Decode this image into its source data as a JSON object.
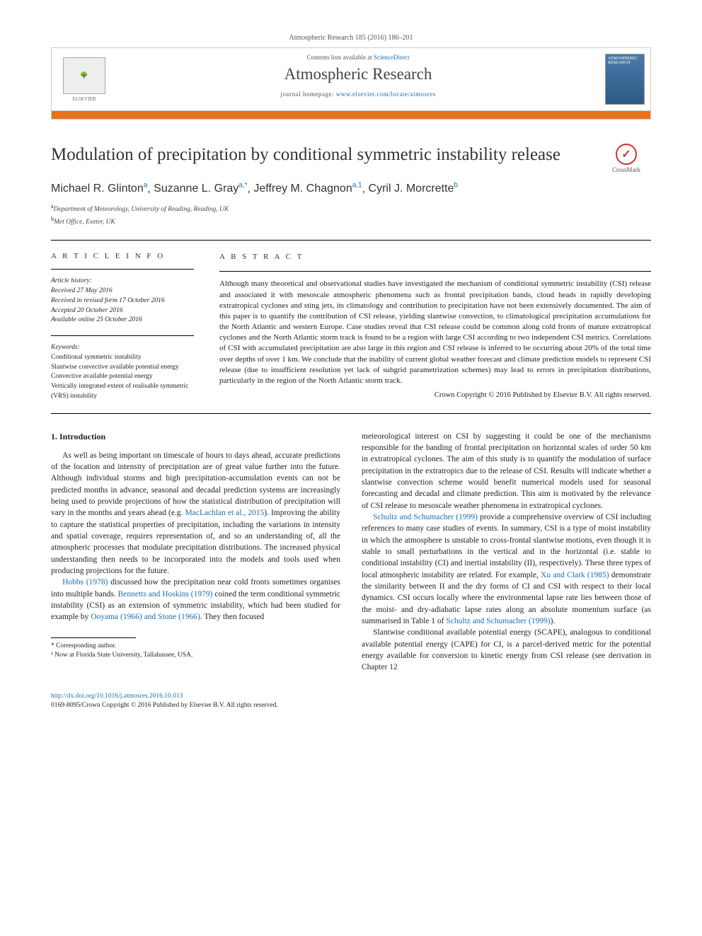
{
  "top_header": "Atmospheric Research 185 (2016) 186–201",
  "journal_box": {
    "contents_prefix": "Contents lists available at ",
    "contents_link": "ScienceDirect",
    "journal_name": "Atmospheric Research",
    "homepage_label": "journal homepage: ",
    "homepage_url": "www.elsevier.com/locate/atmosres",
    "publisher": "ELSEVIER",
    "cover_text": "ATMOSPHERIC RESEARCH"
  },
  "crossmark_label": "CrossMark",
  "title": "Modulation of precipitation by conditional symmetric instability release",
  "authors_html": "Michael R. Glinton",
  "authors": [
    {
      "name": "Michael R. Glinton",
      "sup": "a"
    },
    {
      "name": "Suzanne L. Gray",
      "sup": "a,*"
    },
    {
      "name": "Jeffrey M. Chagnon",
      "sup": "a,1"
    },
    {
      "name": "Cyril J. Morcrette",
      "sup": "b"
    }
  ],
  "affiliations": [
    {
      "sup": "a",
      "text": "Department of Meteorology, University of Reading, Reading, UK"
    },
    {
      "sup": "b",
      "text": "Met Office, Exeter, UK"
    }
  ],
  "article_info_label": "A R T I C L E   I N F O",
  "abstract_label": "A B S T R A C T",
  "history": {
    "heading": "Article history:",
    "lines": [
      "Received 27 May 2016",
      "Received in revised form 17 October 2016",
      "Accepted 20 October 2016",
      "Available online 25 October 2016"
    ]
  },
  "keywords": {
    "heading": "Keywords:",
    "items": [
      "Conditional symmetric instability",
      "Slantwise convective available potential energy",
      "Convective available potential energy",
      "Vertically integrated extent of realisable symmetric (VRS) instability"
    ]
  },
  "abstract_text": "Although many theoretical and observational studies have investigated the mechanism of conditional symmetric instability (CSI) release and associated it with mesoscale atmospheric phenomena such as frontal precipitation bands, cloud heads in rapidly developing extratropical cyclones and sting jets, its climatology and contribution to precipitation have not been extensively documented. The aim of this paper is to quantify the contribution of CSI release, yielding slantwise convection, to climatological precipitation accumulations for the North Atlantic and western Europe. Case studies reveal that CSI release could be common along cold fronts of mature extratropical cyclones and the North Atlantic storm track is found to be a region with large CSI according to two independent CSI metrics. Correlations of CSI with accumulated precipitation are also large in this region and CSI release is inferred to be occurring about 20% of the total time over depths of over 1 km. We conclude that the inability of current global weather forecast and climate prediction models to represent CSI release (due to insufficient resolution yet lack of subgrid parametrization schemes) may lead to errors in precipitation distributions, particularly in the region of the North Atlantic storm track.",
  "copyright_line": "Crown Copyright © 2016 Published by Elsevier B.V. All rights reserved.",
  "section1_heading": "1. Introduction",
  "body": {
    "p1": "As well as being important on timescale of hours to days ahead, accurate predictions of the location and intensity of precipitation are of great value further into the future. Although individual storms and high precipitation-accumulation events can not be predicted months in advance, seasonal and decadal prediction systems are increasingly being used to provide projections of how the statistical distribution of precipitation will vary in the months and years ahead (e.g. ",
    "p1_ref": "MacLachlan et al., 2015",
    "p1_b": "). Improving the ability to capture the statistical properties of precipitation, including the variations in intensity and spatial coverage, requires representation of, and so an understanding of, all the atmospheric processes that modulate precipitation distributions. The increased physical understanding then needs to be incorporated into the models and tools used when producing projections for the future.",
    "p2_a": "",
    "p2_ref1": "Hobbs (1978)",
    "p2_b": " discussed how the precipitation near cold fronts sometimes organises into multiple bands. ",
    "p2_ref2": "Bennetts and Hoskins (1979)",
    "p2_c": " coined the term conditional symmetric instability (CSI) as an extension of symmetric instability, which had been studied for example by ",
    "p2_ref3": "Ooyama (1966) and Stone (1966)",
    "p2_d": ". They then focused ",
    "p2_e": "meteorological interest on CSI by suggesting it could be one of the mechanisms responsible for the banding of frontal precipitation on horizontal scales of order 50 km in extratropical cyclones. The aim of this study is to quantify the modulation of surface precipitation in the extratropics due to the release of CSI. Results will indicate whether a slantwise convection scheme would benefit numerical models used for seasonal forecasting and decadal and climate prediction. This aim is motivated by the relevance of CSI release to mesoscale weather phenomena in extratropical cyclones.",
    "p3_ref1": "Schultz and Schumacher (1999)",
    "p3_a": " provide a comprehensive overview of CSI including references to many case studies of events. In summary, CSI is a type of moist instability in which the atmosphere is unstable to cross-frontal slantwise motions, even though it is stable to small perturbations in the vertical and in the horizontal (i.e. stable to conditional instability (CI) and inertial instability (II), respectively). These three types of local atmospheric instability are related. For example, ",
    "p3_ref2": "Xu and Clark (1985)",
    "p3_b": " demonstrate the similarity between II and the dry forms of CI and CSI with respect to their local dynamics. CSI occurs locally where the environmental lapse rate lies between those of the moist- and dry-adiabatic lapse rates along an absolute momentum surface (as summarised in Table 1 of ",
    "p3_ref3": "Schultz and Schumacher (1999)",
    "p3_c": ").",
    "p4": "Slantwise conditional available potential energy (SCAPE), analogous to conditional available potential energy (CAPE) for CI, is a parcel-derived metric for the potential energy available for conversion to kinetic energy from CSI release (see derivation in Chapter 12"
  },
  "footnotes": {
    "corr": "* Corresponding author.",
    "fn1": "¹ Now at Florida State University, Tallahassee, USA."
  },
  "footer": {
    "doi": "http://dx.doi.org/10.1016/j.atmosres.2016.10.013",
    "issn_line": "0169-8095/Crown Copyright © 2016 Published by Elsevier B.V. All rights reserved."
  }
}
